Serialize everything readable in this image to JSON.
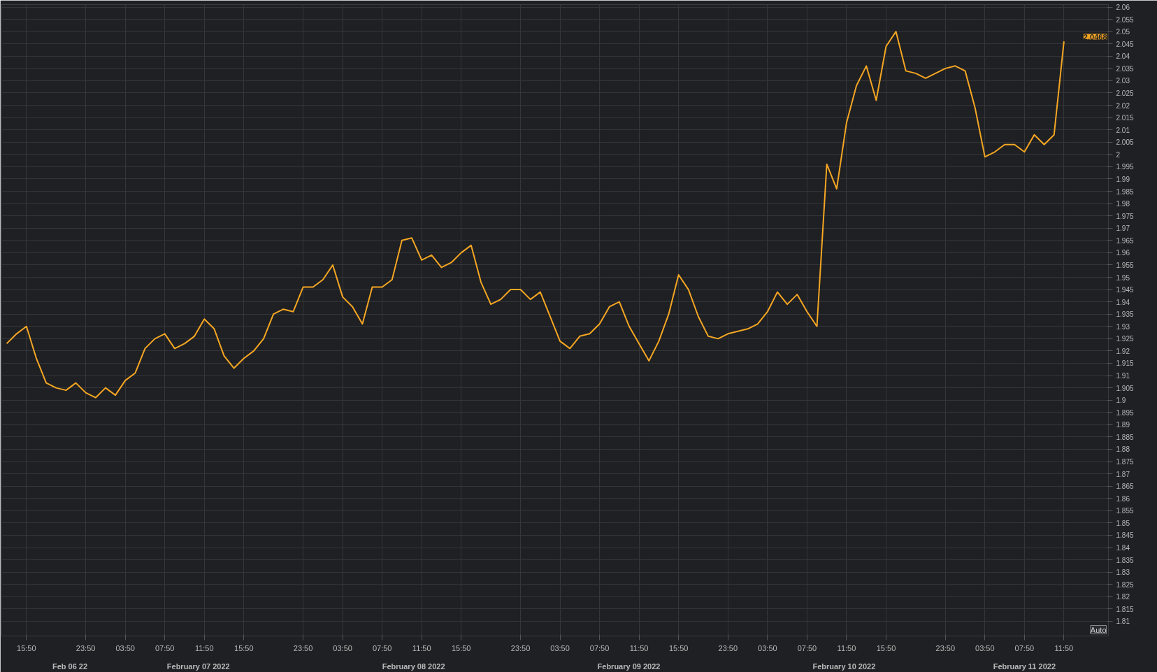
{
  "chart_data": {
    "type": "line",
    "categories": [
      null,
      null,
      "15:50",
      null,
      null,
      null,
      null,
      null,
      "23:50",
      null,
      null,
      null,
      "03:50",
      null,
      null,
      null,
      "07:50",
      null,
      null,
      null,
      "11:50",
      null,
      null,
      null,
      "15:50",
      null,
      null,
      null,
      null,
      null,
      "23:50",
      null,
      null,
      null,
      "03:50",
      null,
      null,
      null,
      "07:50",
      null,
      null,
      null,
      "11:50",
      null,
      null,
      null,
      "15:50",
      null,
      null,
      null,
      null,
      null,
      "23:50",
      null,
      null,
      null,
      "03:50",
      null,
      null,
      null,
      "07:50",
      null,
      null,
      null,
      "11:50",
      null,
      null,
      null,
      "15:50",
      null,
      null,
      null,
      null,
      "23:50",
      null,
      null,
      null,
      "03:50",
      null,
      null,
      null,
      "07:50",
      null,
      null,
      null,
      "11:50",
      null,
      null,
      null,
      "15:50",
      null,
      null,
      null,
      null,
      null,
      "23:50",
      null,
      null,
      null,
      "03:50",
      null,
      null,
      null,
      "07:50",
      null,
      null,
      null,
      "11:50",
      null,
      null
    ],
    "series": [
      {
        "color": "#f5a623",
        "values": [
          1.923,
          1.927,
          1.93,
          1.917,
          1.907,
          1.905,
          1.904,
          1.907,
          1.903,
          1.901,
          1.905,
          1.902,
          1.908,
          1.911,
          1.921,
          1.925,
          1.927,
          1.921,
          1.923,
          1.926,
          1.933,
          1.929,
          1.918,
          1.913,
          1.917,
          1.92,
          1.925,
          1.935,
          1.937,
          1.936,
          1.946,
          1.946,
          1.949,
          1.955,
          1.942,
          1.938,
          1.931,
          1.946,
          1.946,
          1.949,
          1.965,
          1.966,
          1.957,
          1.959,
          1.954,
          1.956,
          1.96,
          1.963,
          1.948,
          1.939,
          1.941,
          1.945,
          1.945,
          1.941,
          1.944,
          1.934,
          1.924,
          1.921,
          1.926,
          1.927,
          1.931,
          1.938,
          1.94,
          1.93,
          1.923,
          1.916,
          1.924,
          1.935,
          1.951,
          1.945,
          1.934,
          1.926,
          1.925,
          1.927,
          1.928,
          1.929,
          1.931,
          1.936,
          1.944,
          1.939,
          1.943,
          1.936,
          1.93,
          1.996,
          1.986,
          2.013,
          2.028,
          2.036,
          2.022,
          2.044,
          2.05,
          2.034,
          2.033,
          2.031,
          2.033,
          2.035,
          2.036,
          2.034,
          2.019,
          1.999,
          2.001,
          2.004,
          2.004,
          2.001,
          2.008,
          2.004,
          2.008,
          2.046,
          null,
          null
        ]
      }
    ],
    "ylim": [
      1.804,
      2.061
    ],
    "yticks": [
      1.81,
      1.815,
      1.82,
      1.825,
      1.83,
      1.835,
      1.84,
      1.845,
      1.85,
      1.855,
      1.86,
      1.865,
      1.87,
      1.875,
      1.88,
      1.885,
      1.89,
      1.895,
      1.9,
      1.905,
      1.91,
      1.915,
      1.92,
      1.925,
      1.93,
      1.935,
      1.94,
      1.945,
      1.95,
      1.955,
      1.96,
      1.965,
      1.97,
      1.975,
      1.98,
      1.985,
      1.99,
      1.995,
      2,
      2.005,
      2.01,
      2.015,
      2.02,
      2.025,
      2.03,
      2.035,
      2.04,
      2.045,
      2.05,
      2.055,
      2.06
    ],
    "grid": true,
    "annotations": [
      "Feb 06 22",
      "February 07 2022",
      "February 08 2022",
      "February 09 2022",
      "February 10 2022",
      "February 11 2022",
      "2.0468",
      "Auto"
    ]
  }
}
